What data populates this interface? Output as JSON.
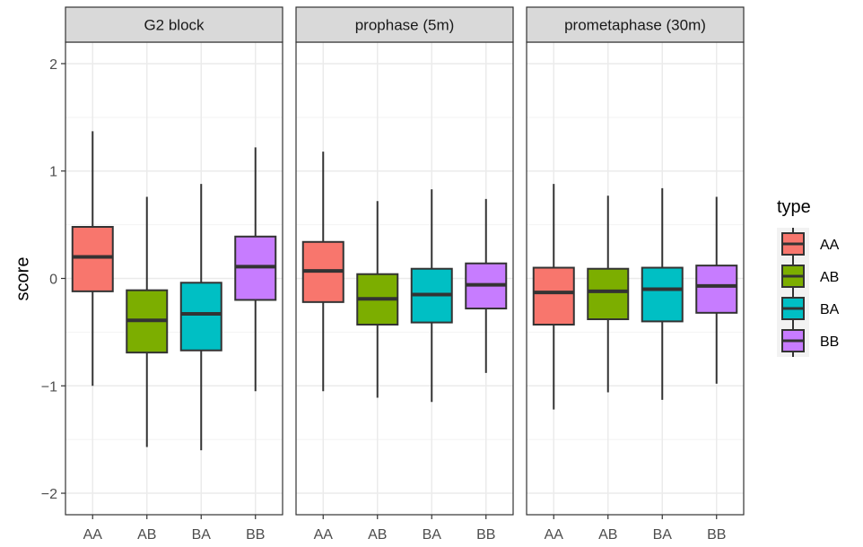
{
  "chart_data": {
    "type": "boxplot",
    "ylabel": "score",
    "xlabel": "",
    "ylim": [
      -2.2,
      2.2
    ],
    "yticks": [
      -2,
      -1,
      0,
      1,
      2
    ],
    "ytick_labels": [
      "−2",
      "−1",
      "0",
      "1",
      "2"
    ],
    "grid": true,
    "categories": [
      "AA",
      "AB",
      "BA",
      "BB"
    ],
    "legend": {
      "title": "type",
      "position": "right",
      "entries": [
        "AA",
        "AB",
        "BA",
        "BB"
      ]
    },
    "colors": {
      "AA": "#F8766D",
      "AB": "#7CAE00",
      "BA": "#00BFC4",
      "BB": "#C77CFF"
    },
    "panels": [
      {
        "title": "G2 block",
        "boxes": [
          {
            "category": "AA",
            "min": -1.0,
            "q1": -0.12,
            "median": 0.2,
            "q3": 0.48,
            "max": 1.37
          },
          {
            "category": "AB",
            "min": -1.57,
            "q1": -0.69,
            "median": -0.39,
            "q3": -0.11,
            "max": 0.76
          },
          {
            "category": "BA",
            "min": -1.6,
            "q1": -0.67,
            "median": -0.33,
            "q3": -0.04,
            "max": 0.88
          },
          {
            "category": "BB",
            "min": -1.05,
            "q1": -0.2,
            "median": 0.11,
            "q3": 0.39,
            "max": 1.22
          }
        ]
      },
      {
        "title": "prophase (5m)",
        "boxes": [
          {
            "category": "AA",
            "min": -1.05,
            "q1": -0.22,
            "median": 0.07,
            "q3": 0.34,
            "max": 1.18
          },
          {
            "category": "AB",
            "min": -1.11,
            "q1": -0.43,
            "median": -0.19,
            "q3": 0.04,
            "max": 0.72
          },
          {
            "category": "BA",
            "min": -1.15,
            "q1": -0.41,
            "median": -0.15,
            "q3": 0.09,
            "max": 0.83
          },
          {
            "category": "BB",
            "min": -0.88,
            "q1": -0.28,
            "median": -0.06,
            "q3": 0.14,
            "max": 0.74
          }
        ]
      },
      {
        "title": "prometaphase (30m)",
        "boxes": [
          {
            "category": "AA",
            "min": -1.22,
            "q1": -0.43,
            "median": -0.13,
            "q3": 0.1,
            "max": 0.88
          },
          {
            "category": "AB",
            "min": -1.06,
            "q1": -0.38,
            "median": -0.12,
            "q3": 0.09,
            "max": 0.77
          },
          {
            "category": "BA",
            "min": -1.13,
            "q1": -0.4,
            "median": -0.1,
            "q3": 0.1,
            "max": 0.84
          },
          {
            "category": "BB",
            "min": -0.98,
            "q1": -0.32,
            "median": -0.07,
            "q3": 0.12,
            "max": 0.76
          }
        ]
      }
    ]
  }
}
